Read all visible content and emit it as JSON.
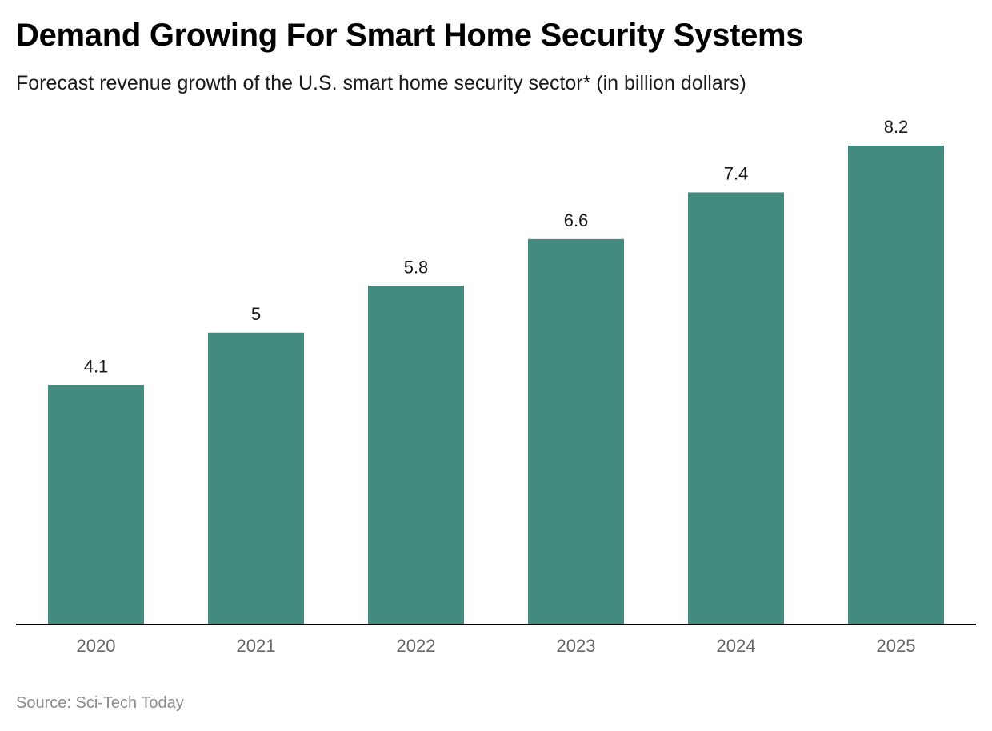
{
  "title": "Demand Growing For Smart Home Security Systems",
  "subtitle": "Forecast revenue growth of the U.S. smart home security sector* (in billion dollars)",
  "source": "Source: Sci-Tech Today",
  "colors": {
    "bar": "#448b7f",
    "axis": "#000000",
    "tick_label": "#666666",
    "value_label": "#1a1a1a"
  },
  "chart_data": {
    "type": "bar",
    "categories": [
      "2020",
      "2021",
      "2022",
      "2023",
      "2024",
      "2025"
    ],
    "values": [
      4.1,
      5,
      5.8,
      6.6,
      7.4,
      8.2
    ],
    "value_labels": [
      "4.1",
      "5",
      "5.8",
      "6.6",
      "7.4",
      "8.2"
    ],
    "title": "Demand Growing For Smart Home Security Systems",
    "xlabel": "",
    "ylabel": "",
    "ylim": [
      0,
      8.2
    ],
    "grid": false,
    "legend": "none"
  }
}
